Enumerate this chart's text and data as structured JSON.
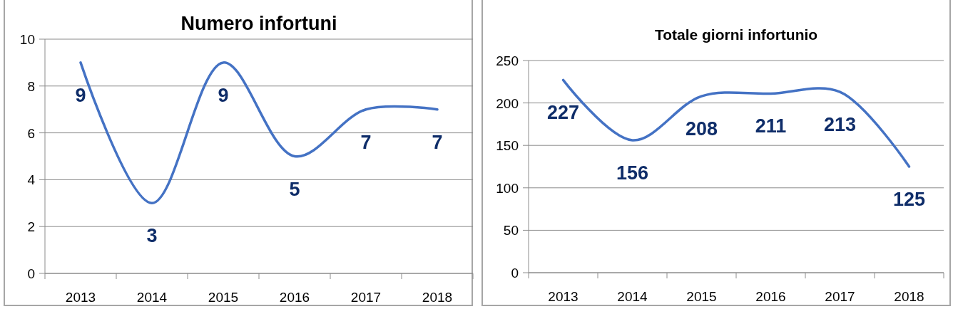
{
  "chart_data": [
    {
      "type": "line",
      "title": "Numero infortuni",
      "categories": [
        "2013",
        "2014",
        "2015",
        "2016",
        "2017",
        "2018"
      ],
      "series": [
        {
          "color": "#4472c4",
          "values": [
            9,
            3,
            9,
            5,
            7,
            7
          ]
        }
      ],
      "ylim": [
        0,
        10
      ],
      "yticks": [
        0,
        2,
        4,
        6,
        8,
        10
      ],
      "grid": "y",
      "data_labels": true
    },
    {
      "type": "line",
      "title": "Totale  giorni infortunio",
      "categories": [
        "2013",
        "2014",
        "2015",
        "2016",
        "2017",
        "2018"
      ],
      "series": [
        {
          "color": "#4472c4",
          "values": [
            227,
            156,
            208,
            211,
            213,
            125
          ]
        }
      ],
      "ylim": [
        0,
        250
      ],
      "yticks": [
        0,
        50,
        100,
        150,
        200,
        250
      ],
      "grid": "y",
      "data_labels": true
    }
  ]
}
